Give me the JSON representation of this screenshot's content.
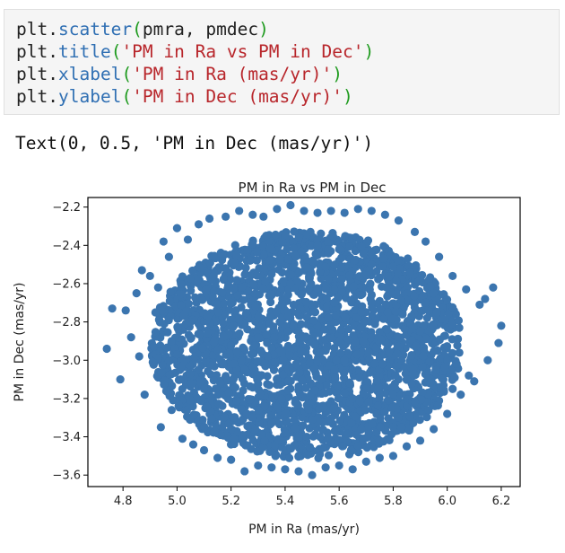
{
  "code_cell": {
    "lines": [
      {
        "obj": "plt",
        "fn": "scatter",
        "args": "pmra, pmdec",
        "arg_is_string": false
      },
      {
        "obj": "plt",
        "fn": "title",
        "args": "'PM in Ra vs PM in Dec'",
        "arg_is_string": true
      },
      {
        "obj": "plt",
        "fn": "xlabel",
        "args": "'PM in Ra (mas/yr)'",
        "arg_is_string": true
      },
      {
        "obj": "plt",
        "fn": "ylabel",
        "args": "'PM in Dec (mas/yr)'",
        "arg_is_string": true
      }
    ]
  },
  "output": {
    "text": "Text(0, 0.5, 'PM in Dec (mas/yr)')"
  },
  "colors": {
    "points": "#3b75af",
    "axes": "#000000",
    "code_function": "#2f6fb3",
    "code_paren": "#1f9b1f",
    "code_string": "#b8262b"
  },
  "chart_data": {
    "type": "scatter",
    "title": "PM in Ra vs PM in Dec",
    "xlabel": "PM in Ra (mas/yr)",
    "ylabel": "PM in Dec (mas/yr)",
    "xlim": [
      4.67,
      6.27
    ],
    "ylim": [
      -3.66,
      -2.15
    ],
    "xticks": [
      4.8,
      5.0,
      5.2,
      5.4,
      5.6,
      5.8,
      6.0,
      6.2
    ],
    "xtick_labels": [
      "4.8",
      "5.0",
      "5.2",
      "5.4",
      "5.6",
      "5.8",
      "6.0",
      "6.2"
    ],
    "yticks": [
      -2.2,
      -2.4,
      -2.6,
      -2.8,
      -3.0,
      -3.2,
      -3.4,
      -3.6
    ],
    "ytick_labels": [
      "−2.2",
      "−2.4",
      "−2.6",
      "−2.8",
      "−3.0",
      "−3.2",
      "−3.4",
      "−3.6"
    ],
    "grid": false,
    "series": [
      {
        "x": [
          4.74,
          4.76,
          4.79,
          4.81,
          4.83,
          4.85,
          4.87,
          4.88,
          4.9,
          4.91,
          4.93,
          4.94,
          4.95,
          4.97,
          4.98,
          5.0,
          5.02,
          5.04,
          5.06,
          5.08,
          5.1,
          5.12,
          5.15,
          5.18,
          5.2,
          5.23,
          5.25,
          5.28,
          5.3,
          5.32,
          5.35,
          5.37,
          5.4,
          5.42,
          5.45,
          5.47,
          5.5,
          5.52,
          5.55,
          5.57,
          5.6,
          5.62,
          5.65,
          5.67,
          5.7,
          5.72,
          5.75,
          5.77,
          5.8,
          5.82,
          5.85,
          5.88,
          5.9,
          5.92,
          5.95,
          5.97,
          6.0,
          6.02,
          6.05,
          6.07,
          6.1,
          6.12,
          6.15,
          6.17,
          6.19,
          6.2,
          5.5,
          5.45,
          5.55,
          5.38,
          5.62,
          5.3,
          5.7,
          5.25,
          5.78,
          5.2,
          5.85,
          5.15,
          5.9,
          5.1,
          5.95,
          5.05,
          6.0,
          5.42,
          5.58,
          5.35,
          5.65,
          5.28,
          5.72,
          5.22,
          5.8,
          5.48,
          5.52,
          5.4,
          5.6,
          5.33,
          5.67,
          5.27,
          5.75,
          5.18,
          5.82,
          5.13,
          5.88,
          5.08,
          5.92,
          4.98,
          6.02,
          4.92,
          6.08,
          4.86,
          6.14,
          5.44,
          5.56,
          5.36,
          5.64,
          5.29,
          5.71,
          5.24,
          5.76,
          5.21,
          5.69,
          5.31,
          5.59,
          5.41,
          5.51,
          5.47,
          5.53
        ],
        "y": [
          -2.94,
          -2.73,
          -3.1,
          -2.74,
          -2.88,
          -2.65,
          -2.53,
          -3.18,
          -2.56,
          -3.01,
          -2.62,
          -3.35,
          -2.38,
          -2.46,
          -3.26,
          -2.31,
          -3.41,
          -2.37,
          -3.44,
          -2.29,
          -3.47,
          -2.26,
          -3.51,
          -2.25,
          -3.52,
          -2.22,
          -3.58,
          -2.24,
          -3.55,
          -2.25,
          -3.56,
          -2.21,
          -3.57,
          -2.19,
          -3.58,
          -2.22,
          -3.6,
          -2.23,
          -3.56,
          -2.22,
          -3.55,
          -2.23,
          -3.57,
          -2.21,
          -3.53,
          -2.22,
          -3.51,
          -2.24,
          -3.5,
          -2.27,
          -3.45,
          -2.33,
          -3.42,
          -2.38,
          -3.36,
          -2.46,
          -3.28,
          -2.56,
          -3.18,
          -2.63,
          -3.11,
          -2.71,
          -3.0,
          -2.62,
          -2.91,
          -2.82,
          -2.9,
          -2.85,
          -2.95,
          -2.8,
          -3.0,
          -2.88,
          -2.92,
          -3.05,
          -2.75,
          -2.7,
          -3.1,
          -2.95,
          -2.85,
          -3.15,
          -2.65,
          -2.8,
          -3.0,
          -2.6,
          -3.25,
          -2.55,
          -3.2,
          -3.3,
          -2.5,
          -2.45,
          -3.35,
          -3.4,
          -2.4,
          -3.38,
          -2.42,
          -2.35,
          -3.45,
          -2.48,
          -3.42,
          -2.52,
          -3.3,
          -2.58,
          -3.22,
          -3.05,
          -2.7,
          -2.9,
          -3.15,
          -2.75,
          -3.08,
          -2.98,
          -2.68,
          -3.02,
          -2.78,
          -2.88,
          -3.12,
          -2.72,
          -3.22,
          -2.62,
          -3.02,
          -2.82,
          -2.9,
          -2.95,
          -3.0,
          -2.85,
          -2.92,
          -2.88,
          -2.96
        ]
      }
    ]
  }
}
